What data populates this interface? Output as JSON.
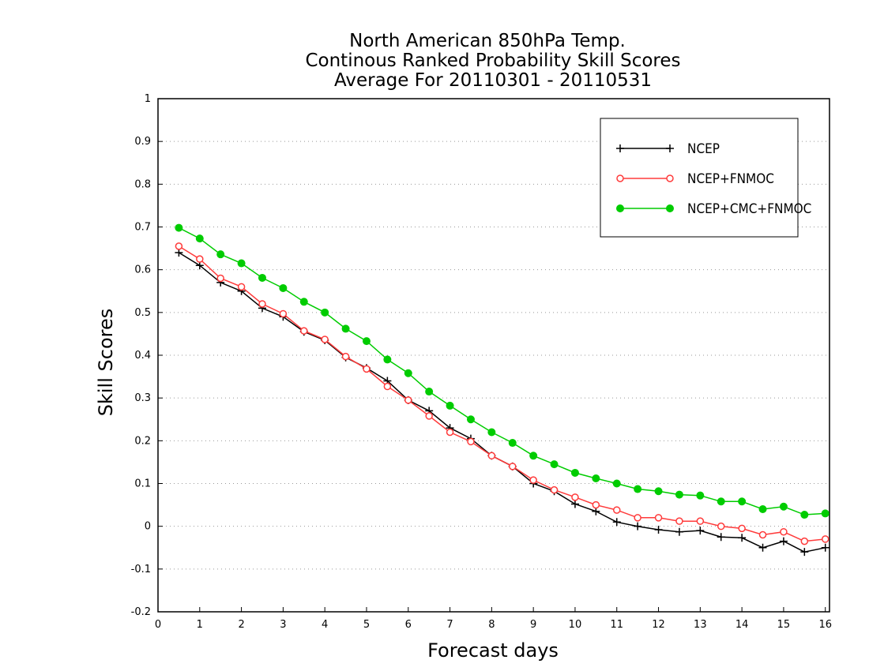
{
  "chart_data": {
    "type": "line",
    "title_lines": [
      "North American 850hPa Temp.",
      "Continous Ranked Probability Skill Scores",
      "Average For 20110301 - 20110531"
    ],
    "xlabel": "Forecast days",
    "ylabel": "Skill Scores",
    "xlim": [
      0,
      16.1
    ],
    "ylim": [
      -0.2,
      1
    ],
    "x_ticks": [
      0,
      1,
      2,
      3,
      4,
      5,
      6,
      7,
      8,
      9,
      10,
      11,
      12,
      13,
      14,
      15,
      16
    ],
    "y_ticks": [
      -0.2,
      -0.1,
      0,
      0.1,
      0.2,
      0.3,
      0.4,
      0.5,
      0.6,
      0.7,
      0.8,
      0.9,
      1
    ],
    "y_tick_labels": [
      "-0.2",
      "-0.1",
      "0",
      "0.1",
      "0.2",
      "0.3",
      "0.4",
      "0.5",
      "0.6",
      "0.7",
      "0.8",
      "0.9",
      "1"
    ],
    "grid": "horizontal dotted",
    "legend_position": "top-right",
    "x": [
      0.5,
      1,
      1.5,
      2,
      2.5,
      3,
      3.5,
      4,
      4.5,
      5,
      5.5,
      6,
      6.5,
      7,
      7.5,
      8,
      8.5,
      9,
      9.5,
      10,
      10.5,
      11,
      11.5,
      12,
      12.5,
      13,
      13.5,
      14,
      14.5,
      15,
      15.5,
      16
    ],
    "series": [
      {
        "name": "NCEP",
        "color": "#000000",
        "marker": "plus",
        "values": [
          0.64,
          0.61,
          0.57,
          0.55,
          0.51,
          0.49,
          0.455,
          0.435,
          0.395,
          0.37,
          0.34,
          0.295,
          0.27,
          0.23,
          0.205,
          0.165,
          0.14,
          0.1,
          0.082,
          0.052,
          0.035,
          0.01,
          0.0,
          -0.008,
          -0.013,
          -0.01,
          -0.025,
          -0.027,
          -0.05,
          -0.035,
          -0.06,
          -0.05
        ]
      },
      {
        "name": "NCEP+FNMOC",
        "color": "#ff3b3b",
        "marker": "open-circle",
        "values": [
          0.655,
          0.625,
          0.58,
          0.56,
          0.52,
          0.497,
          0.457,
          0.437,
          0.397,
          0.368,
          0.327,
          0.295,
          0.258,
          0.22,
          0.198,
          0.165,
          0.14,
          0.108,
          0.085,
          0.068,
          0.05,
          0.038,
          0.02,
          0.02,
          0.012,
          0.012,
          0.0,
          -0.005,
          -0.02,
          -0.013,
          -0.035,
          -0.03
        ]
      },
      {
        "name": "NCEP+CMC+FNMOC",
        "color": "#00cc00",
        "marker": "filled-circle",
        "values": [
          0.698,
          0.673,
          0.636,
          0.615,
          0.581,
          0.557,
          0.525,
          0.5,
          0.462,
          0.433,
          0.39,
          0.358,
          0.315,
          0.282,
          0.25,
          0.22,
          0.195,
          0.165,
          0.145,
          0.125,
          0.112,
          0.1,
          0.087,
          0.082,
          0.074,
          0.072,
          0.058,
          0.058,
          0.04,
          0.046,
          0.027,
          0.03
        ]
      }
    ]
  }
}
